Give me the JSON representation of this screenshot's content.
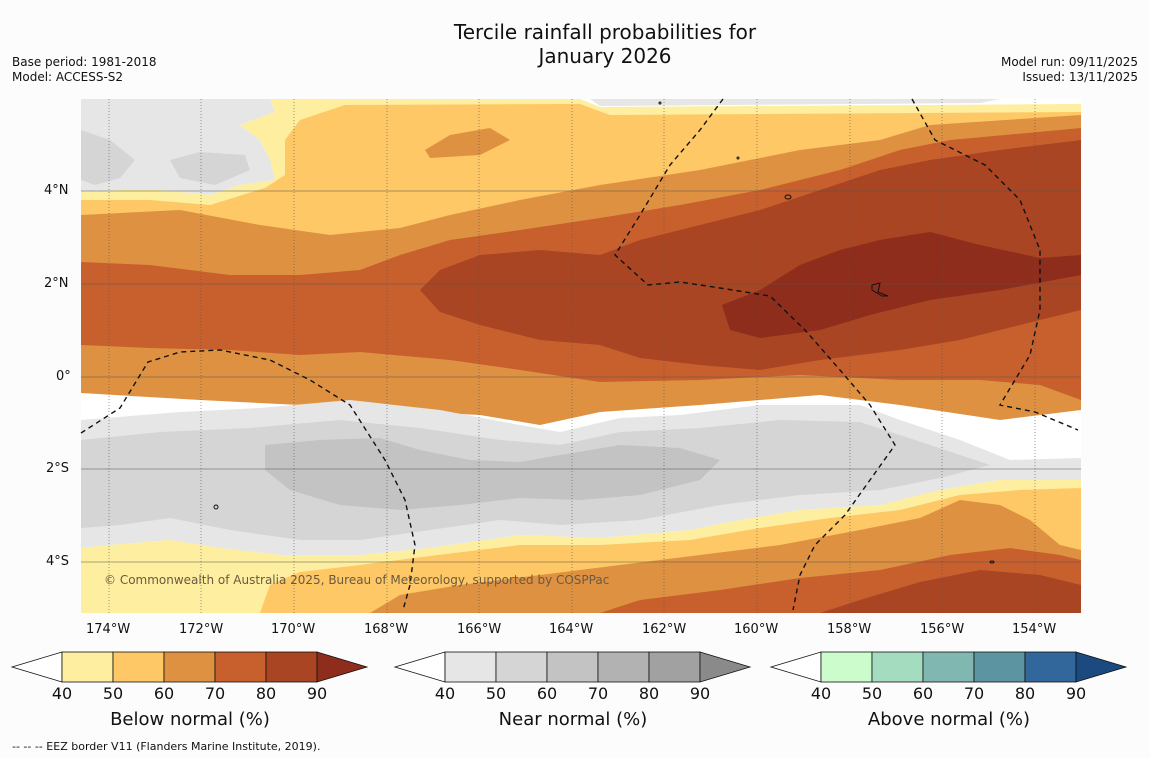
{
  "title_line1": "Tercile rainfall probabilities for",
  "title_line2": "January 2026",
  "base_period": "Base period: 1981-2018",
  "model": "Model: ACCESS-S2",
  "model_run": "Model run: 09/11/2025",
  "issued": "Issued: 13/11/2025",
  "copyright": "© Commonwealth of Australia 2025, Bureau of Meteorology, supported by COSPPac",
  "footnote": "--  --  -- EEZ border V11 (Flanders Marine Institute, 2019).",
  "lon_labels": [
    "174°W",
    "172°W",
    "170°W",
    "168°W",
    "166°W",
    "164°W",
    "162°W",
    "160°W",
    "158°W",
    "156°W",
    "154°W"
  ],
  "lat_labels": [
    "4°N",
    "2°N",
    "0°",
    "2°S",
    "4°S"
  ],
  "legends": [
    {
      "label": "Below normal (%)",
      "colors": [
        "#fdeea0",
        "#fdc865",
        "#df9142",
        "#c8602e",
        "#a94522",
        "#8e2d1c"
      ]
    },
    {
      "label": "Near normal (%)",
      "colors": [
        "#e6e6e6",
        "#d5d5d5",
        "#c3c3c3",
        "#b2b2b2",
        "#a1a1a1",
        "#8a8a8a"
      ]
    },
    {
      "label": "Above normal (%)",
      "colors": [
        "#ccfccc",
        "#a4dcc0",
        "#80b7b0",
        "#5c94a1",
        "#31679b",
        "#1a4a80"
      ]
    }
  ],
  "tick_values": [
    "40",
    "50",
    "60",
    "70",
    "80",
    "90"
  ],
  "colors": {
    "white": "#ffffff",
    "border": "#111111",
    "grid": "#555555"
  }
}
